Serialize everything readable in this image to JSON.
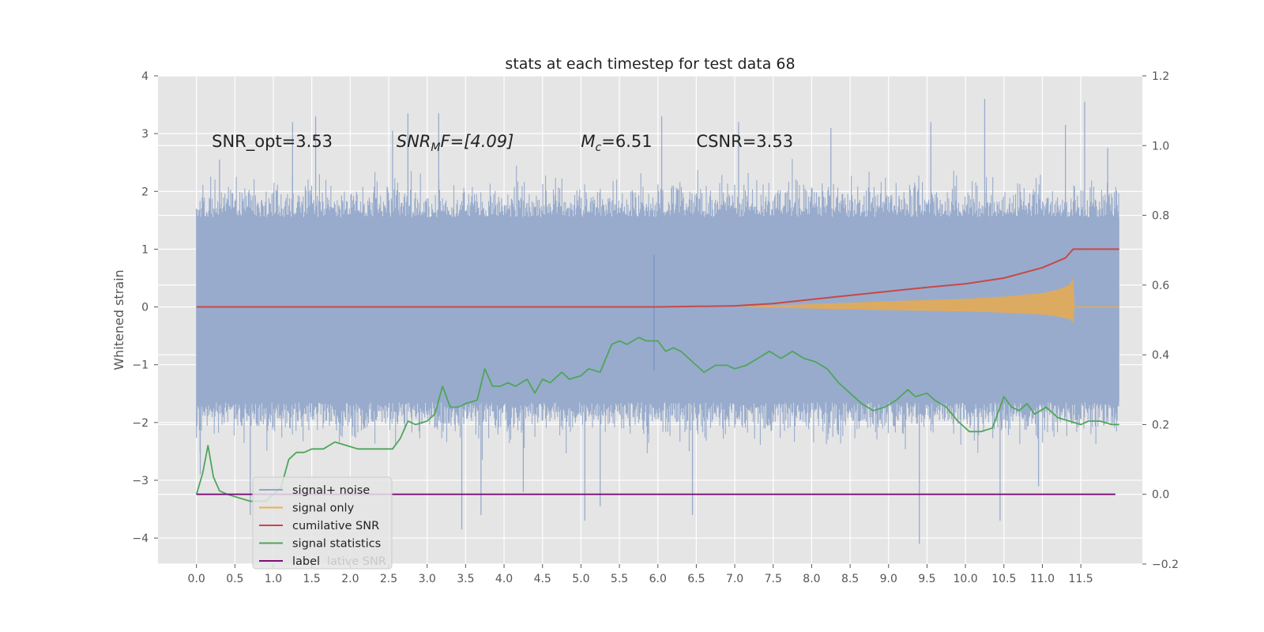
{
  "chart_data": {
    "type": "line",
    "title": "stats at each timestep for test data 68",
    "ylabel": "Whitened strain",
    "xlabel": "",
    "xlim": [
      -0.5,
      12.3
    ],
    "ylim": [
      -4.45,
      4.0
    ],
    "ylim_right": [
      -0.2,
      1.2
    ],
    "grid": true,
    "legend_position": "lower-left",
    "x_ticks": [
      "0.0",
      "0.5",
      "1.0",
      "1.5",
      "2.0",
      "2.5",
      "3.0",
      "3.5",
      "4.0",
      "4.5",
      "5.0",
      "5.5",
      "6.0",
      "6.5",
      "7.0",
      "7.5",
      "8.0",
      "8.5",
      "9.0",
      "9.5",
      "10.0",
      "10.5",
      "11.0",
      "11.5"
    ],
    "y_ticks_left": [
      "−4",
      "−3",
      "−2",
      "−1",
      "0",
      "1",
      "2",
      "3",
      "4"
    ],
    "y_ticks_right": [
      "−0.2",
      "0.0",
      "0.2",
      "0.4",
      "0.6",
      "0.8",
      "1.0",
      "1.2"
    ],
    "annotations": [
      {
        "pre": "SNR_opt=3.53",
        "it": "",
        "sub": "",
        "post": "",
        "x": 0.2,
        "y": 2.8
      },
      {
        "pre": "",
        "it": "SNR",
        "sub": "M",
        "post": "F=[4.09]",
        "x": 2.6,
        "y": 2.8
      },
      {
        "pre": "",
        "it": "M",
        "sub": "c",
        "post": "=6.51",
        "x": 5.0,
        "y": 2.8
      },
      {
        "pre": "CSNR=3.53",
        "it": "",
        "sub": "",
        "post": "",
        "x": 6.5,
        "y": 2.8
      }
    ],
    "legend": [
      {
        "label": "signal+ noise",
        "color": "#91a5cb"
      },
      {
        "label": "signal only",
        "color": "#e8b14f"
      },
      {
        "label": "cumilative SNR",
        "color": "#c84848"
      },
      {
        "label": "signal statistics",
        "color": "#4ea65a"
      },
      {
        "label": "label",
        "color": "#7b1077"
      }
    ],
    "legend_ghost_text": "lative SNR",
    "noise_series": {
      "name": "signal+ noise",
      "x_range": [
        0.0,
        12.0
      ],
      "envelope_upper": 1.55,
      "envelope_lower": -1.65,
      "spikes": [
        {
          "x": 0.05,
          "y": -2.9
        },
        {
          "x": 0.3,
          "y": 2.55
        },
        {
          "x": 0.7,
          "y": -3.6
        },
        {
          "x": 1.25,
          "y": 3.2
        },
        {
          "x": 1.55,
          "y": 3.3
        },
        {
          "x": 2.55,
          "y": 3.05
        },
        {
          "x": 2.75,
          "y": 3.35
        },
        {
          "x": 3.15,
          "y": 3.35
        },
        {
          "x": 3.45,
          "y": -3.85
        },
        {
          "x": 3.7,
          "y": -3.6
        },
        {
          "x": 4.25,
          "y": -3.2
        },
        {
          "x": 5.05,
          "y": -3.7
        },
        {
          "x": 5.25,
          "y": -3.45
        },
        {
          "x": 6.05,
          "y": 3.3
        },
        {
          "x": 6.45,
          "y": -3.6
        },
        {
          "x": 7.05,
          "y": 3.2
        },
        {
          "x": 8.25,
          "y": 3.1
        },
        {
          "x": 9.4,
          "y": -4.1
        },
        {
          "x": 9.55,
          "y": 3.2
        },
        {
          "x": 10.25,
          "y": 3.6
        },
        {
          "x": 10.45,
          "y": -3.7
        },
        {
          "x": 10.95,
          "y": -3.1
        },
        {
          "x": 11.3,
          "y": 3.15
        },
        {
          "x": 11.55,
          "y": 3.55
        },
        {
          "x": 11.85,
          "y": 2.75
        },
        {
          "x": 5.95,
          "y": 0.9
        }
      ]
    },
    "signal_only": {
      "name": "signal only",
      "x": [
        7.0,
        8.0,
        9.0,
        10.0,
        10.5,
        11.0,
        11.2,
        11.35,
        11.4,
        11.42,
        12.0
      ],
      "amplitude": [
        0.0,
        0.05,
        0.1,
        0.14,
        0.18,
        0.24,
        0.3,
        0.38,
        0.5,
        0.0,
        0.0
      ]
    },
    "cumulative_snr": {
      "name": "cumilative SNR",
      "axis": "left",
      "x": [
        0.0,
        6.0,
        6.5,
        7.0,
        7.5,
        8.0,
        8.5,
        9.0,
        9.5,
        10.0,
        10.5,
        11.0,
        11.3,
        11.4,
        12.0
      ],
      "y": [
        0.0,
        0.0,
        0.01,
        0.02,
        0.06,
        0.13,
        0.2,
        0.27,
        0.34,
        0.4,
        0.5,
        0.68,
        0.85,
        1.0,
        1.0
      ]
    },
    "signal_statistics": {
      "name": "signal statistics",
      "axis": "right",
      "x": [
        0.0,
        0.08,
        0.15,
        0.22,
        0.3,
        0.4,
        0.55,
        0.7,
        0.9,
        1.1,
        1.2,
        1.3,
        1.4,
        1.5,
        1.65,
        1.8,
        1.95,
        2.1,
        2.25,
        2.4,
        2.55,
        2.65,
        2.75,
        2.85,
        3.0,
        3.1,
        3.2,
        3.3,
        3.4,
        3.5,
        3.65,
        3.75,
        3.85,
        3.95,
        4.05,
        4.15,
        4.3,
        4.4,
        4.5,
        4.6,
        4.75,
        4.85,
        5.0,
        5.1,
        5.25,
        5.4,
        5.5,
        5.6,
        5.75,
        5.85,
        6.0,
        6.1,
        6.2,
        6.3,
        6.45,
        6.6,
        6.75,
        6.9,
        7.0,
        7.15,
        7.3,
        7.45,
        7.6,
        7.75,
        7.9,
        8.05,
        8.2,
        8.35,
        8.5,
        8.65,
        8.8,
        8.95,
        9.1,
        9.25,
        9.35,
        9.5,
        9.6,
        9.75,
        9.9,
        10.05,
        10.2,
        10.35,
        10.5,
        10.6,
        10.7,
        10.8,
        10.9,
        11.05,
        11.2,
        11.35,
        11.5,
        11.6,
        11.75,
        11.9,
        12.0
      ],
      "y": [
        0.0,
        0.06,
        0.14,
        0.05,
        0.01,
        0.0,
        -0.01,
        -0.02,
        -0.02,
        0.02,
        0.1,
        0.12,
        0.12,
        0.13,
        0.13,
        0.15,
        0.14,
        0.13,
        0.13,
        0.13,
        0.13,
        0.16,
        0.21,
        0.2,
        0.21,
        0.23,
        0.31,
        0.25,
        0.25,
        0.26,
        0.27,
        0.36,
        0.31,
        0.31,
        0.32,
        0.31,
        0.33,
        0.29,
        0.33,
        0.32,
        0.35,
        0.33,
        0.34,
        0.36,
        0.35,
        0.43,
        0.44,
        0.43,
        0.45,
        0.44,
        0.44,
        0.41,
        0.42,
        0.41,
        0.38,
        0.35,
        0.37,
        0.37,
        0.36,
        0.37,
        0.39,
        0.41,
        0.39,
        0.41,
        0.39,
        0.38,
        0.36,
        0.32,
        0.29,
        0.26,
        0.24,
        0.25,
        0.27,
        0.3,
        0.28,
        0.29,
        0.27,
        0.25,
        0.21,
        0.18,
        0.18,
        0.19,
        0.28,
        0.25,
        0.24,
        0.26,
        0.23,
        0.25,
        0.22,
        0.21,
        0.2,
        0.21,
        0.21,
        0.2,
        0.2
      ]
    },
    "label_series": {
      "name": "label",
      "axis": "right",
      "x": [
        0.0,
        11.95
      ],
      "y": [
        0.0,
        0.0
      ]
    }
  }
}
